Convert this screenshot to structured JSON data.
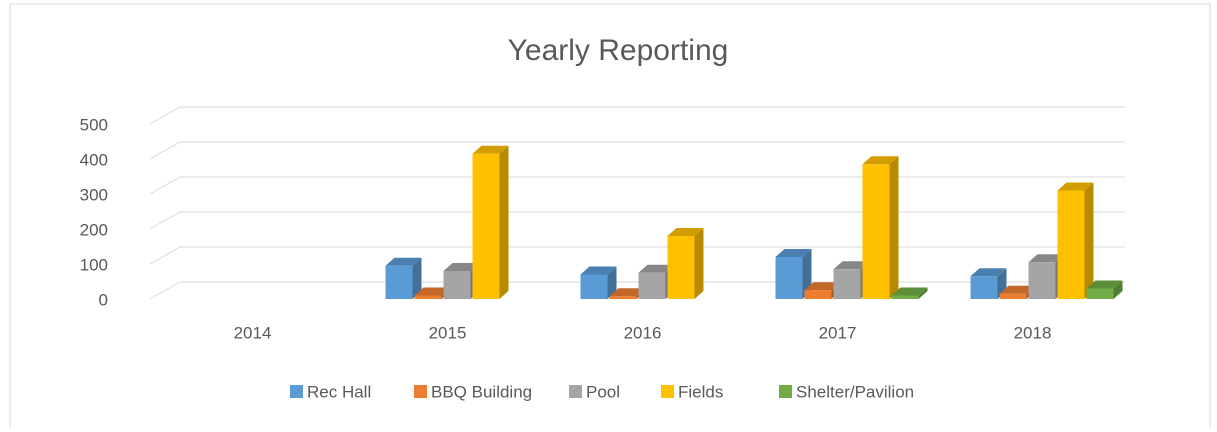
{
  "chart_data": {
    "type": "bar3d",
    "title": "Yearly Reporting",
    "categories": [
      "2014",
      "2015",
      "2016",
      "2017",
      "2018"
    ],
    "series": [
      {
        "name": "Rec Hall",
        "color": "#5b9bd5",
        "values": [
          0,
          95,
          70,
          120,
          65
        ]
      },
      {
        "name": "BBQ Building",
        "color": "#ed7d31",
        "values": [
          0,
          10,
          8,
          25,
          15
        ]
      },
      {
        "name": "Pool",
        "color": "#a5a5a5",
        "values": [
          0,
          80,
          75,
          85,
          105
        ]
      },
      {
        "name": "Fields",
        "color": "#ffc000",
        "values": [
          0,
          415,
          180,
          385,
          310
        ]
      },
      {
        "name": "Shelter/Pavilion",
        "color": "#70ad47",
        "values": [
          0,
          0,
          0,
          10,
          30
        ]
      }
    ],
    "ylim": [
      0,
      500
    ],
    "yticks": [
      0,
      100,
      200,
      300,
      400,
      500
    ],
    "grid": true
  }
}
